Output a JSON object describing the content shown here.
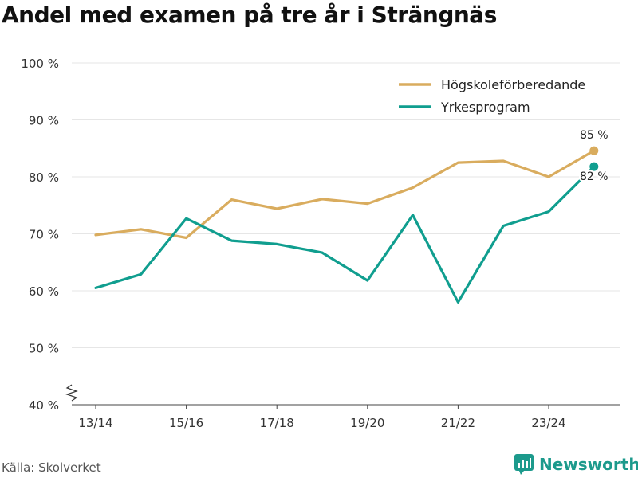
{
  "title": "Andel med examen på tre år i Strängnäs",
  "source": "Källa: Skolverket",
  "brand": "Newsworthy",
  "colors": {
    "accent": "#1c9a8c",
    "gold": "#d9ac5e",
    "teal": "#109e8f",
    "grid": "#e6e6e6"
  },
  "chart_data": {
    "type": "line",
    "title": "Andel med examen på tre år i Strängnäs",
    "xlabel": "",
    "ylabel": "",
    "ylim": [
      40,
      100
    ],
    "yticks": [
      40,
      50,
      60,
      70,
      80,
      90,
      100
    ],
    "ytick_labels": [
      "40 %",
      "50 %",
      "60 %",
      "70 %",
      "80 %",
      "90 %",
      "100 %"
    ],
    "x": [
      "13/14",
      "14/15",
      "15/16",
      "16/17",
      "17/18",
      "18/19",
      "19/20",
      "20/21",
      "21/22",
      "22/23",
      "23/24",
      "24/25"
    ],
    "xtick_labels": [
      "13/14",
      "15/16",
      "17/18",
      "19/20",
      "21/22",
      "23/24"
    ],
    "legend_position": "top-right",
    "series": [
      {
        "name": "Högskoleförberedande",
        "color": "#d9ac5e",
        "values": [
          69.8,
          70.8,
          69.3,
          76.0,
          74.4,
          76.1,
          75.3,
          78.1,
          82.5,
          82.8,
          80.0,
          84.6
        ],
        "end_label": "85 %"
      },
      {
        "name": "Yrkesprogram",
        "color": "#109e8f",
        "values": [
          60.5,
          62.9,
          72.7,
          68.8,
          68.2,
          66.7,
          61.8,
          73.3,
          58.0,
          71.4,
          73.9,
          81.8
        ],
        "end_label": "82 %"
      }
    ]
  }
}
